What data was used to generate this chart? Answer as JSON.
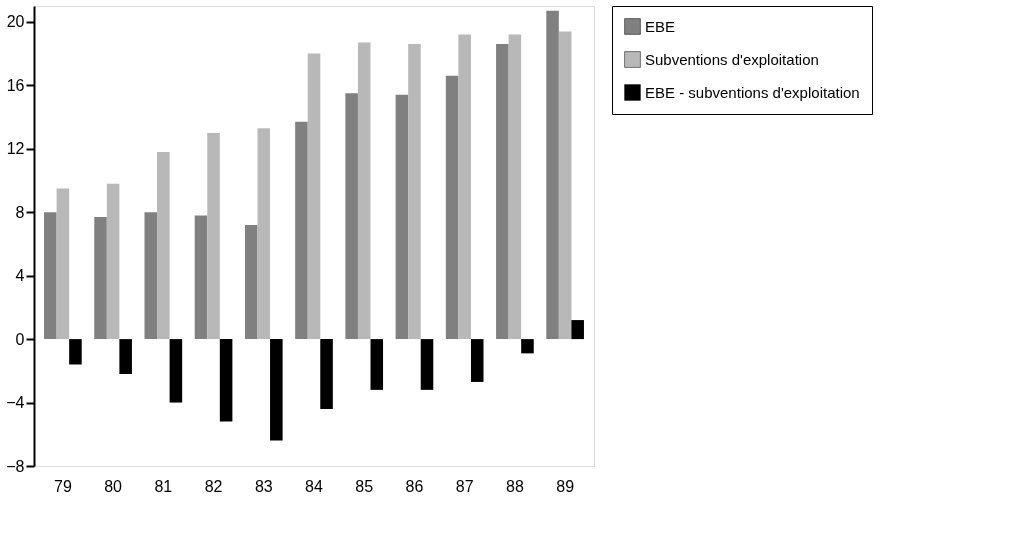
{
  "chart_data": {
    "type": "bar",
    "categories": [
      "79",
      "80",
      "81",
      "82",
      "83",
      "84",
      "85",
      "86",
      "87",
      "88",
      "89"
    ],
    "series": [
      {
        "name": "EBE",
        "color": "#808080",
        "values": [
          8.0,
          7.7,
          8.0,
          7.8,
          7.2,
          13.7,
          15.5,
          15.4,
          16.6,
          18.6,
          20.7
        ]
      },
      {
        "name": "Subventions d'exploitation",
        "color": "#b8b8b8",
        "values": [
          9.5,
          9.8,
          11.8,
          13.0,
          13.3,
          18.0,
          18.7,
          18.6,
          19.2,
          19.2,
          19.4
        ]
      },
      {
        "name": "EBE - subventions d'exploitation",
        "color": "#000000",
        "values": [
          -1.6,
          -2.2,
          -4.0,
          -5.2,
          -6.4,
          -4.4,
          -3.2,
          -3.2,
          -2.7,
          -0.9,
          1.2
        ]
      }
    ],
    "ylim": [
      -8,
      21
    ],
    "yticks": [
      -8,
      -4,
      0,
      4,
      8,
      12,
      16,
      20
    ],
    "grid": false,
    "legend": "right"
  }
}
